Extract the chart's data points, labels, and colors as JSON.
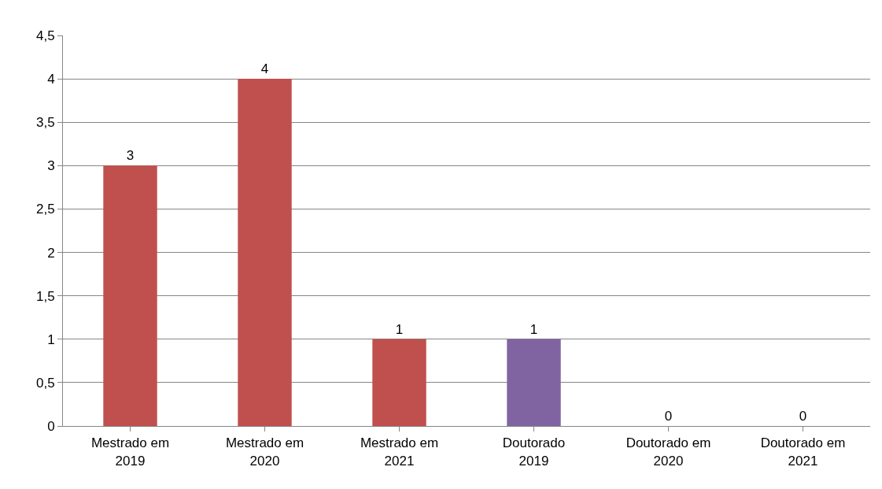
{
  "chart_data": {
    "type": "bar",
    "categories": [
      "Mestrado em 2019",
      "Mestrado em 2020",
      "Mestrado em 2021",
      "Doutorado 2019",
      "Doutorado em 2020",
      "Doutorado em 2021"
    ],
    "values": [
      3,
      4,
      1,
      1,
      0,
      0
    ],
    "colors": [
      "#c0504d",
      "#c0504d",
      "#c0504d",
      "#8064a2",
      "#8064a2",
      "#8064a2"
    ],
    "ylim": [
      0,
      4.5
    ],
    "yticks": [
      0,
      {
        "value": 0.5,
        "label": "0,5"
      },
      1,
      {
        "value": 1.5,
        "label": "1,5"
      },
      2,
      {
        "value": 2.5,
        "label": "2,5"
      },
      3,
      {
        "value": 3.5,
        "label": "3,5"
      },
      4,
      {
        "value": 4.5,
        "label": "4,5"
      }
    ],
    "grid": "y",
    "data_labels": true,
    "legend": false
  }
}
